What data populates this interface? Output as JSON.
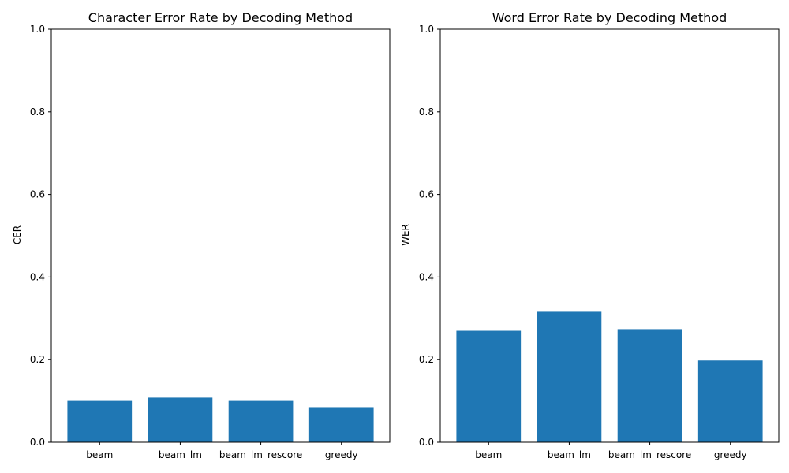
{
  "colors": {
    "bar": "#1f77b4",
    "axis": "#000000",
    "background": "#ffffff"
  },
  "chart_data": [
    {
      "type": "bar",
      "title": "Character Error Rate by Decoding Method",
      "xlabel": "",
      "ylabel": "CER",
      "categories": [
        "beam",
        "beam_lm",
        "beam_lm_rescore",
        "greedy"
      ],
      "values": [
        0.1,
        0.108,
        0.1,
        0.085
      ],
      "ylim": [
        0,
        1.0
      ],
      "yticks": [
        "0.0",
        "0.2",
        "0.4",
        "0.6",
        "0.8",
        "1.0"
      ],
      "grid": false
    },
    {
      "type": "bar",
      "title": "Word Error Rate by Decoding Method",
      "xlabel": "",
      "ylabel": "WER",
      "categories": [
        "beam",
        "beam_lm",
        "beam_lm_rescore",
        "greedy"
      ],
      "values": [
        0.27,
        0.316,
        0.274,
        0.198
      ],
      "ylim": [
        0,
        1.0
      ],
      "yticks": [
        "0.0",
        "0.2",
        "0.4",
        "0.6",
        "0.8",
        "1.0"
      ],
      "grid": false
    }
  ]
}
